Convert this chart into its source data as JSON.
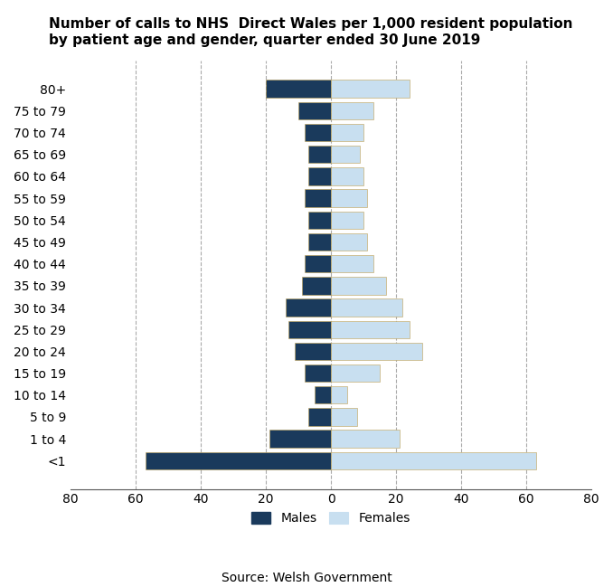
{
  "age_groups": [
    "<1",
    "1 to 4",
    "5 to 9",
    "10 to 14",
    "15 to 19",
    "20 to 24",
    "25 to 29",
    "30 to 34",
    "35 to 39",
    "40 to 44",
    "45 to 49",
    "50 to 54",
    "55 to 59",
    "60 to 64",
    "65 to 69",
    "70 to 74",
    "75 to 79",
    "80+"
  ],
  "males": [
    57,
    19,
    7,
    5,
    8,
    11,
    13,
    14,
    9,
    8,
    7,
    7,
    8,
    7,
    7,
    8,
    10,
    20
  ],
  "females": [
    63,
    21,
    8,
    5,
    15,
    28,
    24,
    22,
    17,
    13,
    11,
    10,
    11,
    10,
    9,
    10,
    13,
    24
  ],
  "male_color": "#1a3a5c",
  "female_color": "#c8dff0",
  "title_line1": "Number of calls to NHS  Direct Wales per 1,000 resident population",
  "title_line2": "by patient age and gender, quarter ended 30 June 2019",
  "xlim": 80,
  "source": "Source: Welsh Government",
  "legend_males": "Males",
  "legend_females": "Females",
  "background_color": "#ffffff",
  "grid_color": "#aaaaaa",
  "title_fontsize": 11,
  "label_fontsize": 10,
  "tick_fontsize": 10,
  "bar_height": 0.8,
  "grid_ticks": [
    -60,
    -40,
    -20,
    0,
    20,
    40,
    60
  ],
  "x_ticks": [
    -80,
    -60,
    -40,
    -20,
    0,
    20,
    40,
    60,
    80
  ],
  "x_tick_labels": [
    "80",
    "60",
    "40",
    "20",
    "0",
    "20",
    "40",
    "60",
    "80"
  ],
  "female_edgecolor": "#c0a050",
  "male_edgecolor": "#c0a050"
}
